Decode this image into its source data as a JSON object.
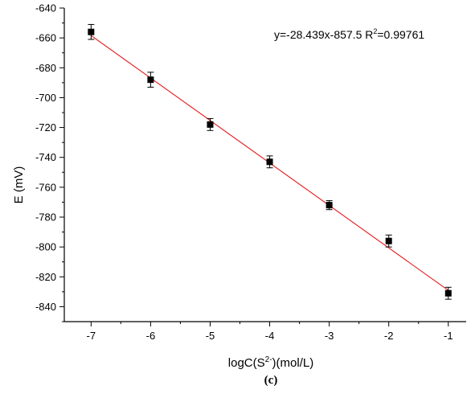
{
  "chart_data": {
    "type": "scatter",
    "title": "",
    "xlabel_prefix": "logC(S",
    "xlabel_sup": "2-",
    "xlabel_suffix": ")(mol/L)",
    "ylabel": "E (mV)",
    "panel_label": "(c)",
    "xlim": [
      -7.45,
      -0.7
    ],
    "ylim": [
      -850,
      -640
    ],
    "x_ticks": [
      -7,
      -6,
      -5,
      -4,
      -3,
      -2,
      -1
    ],
    "y_ticks": [
      -640,
      -660,
      -680,
      -700,
      -720,
      -740,
      -760,
      -780,
      -800,
      -820,
      -840
    ],
    "grid": false,
    "series": [
      {
        "x": [
          -7,
          -6,
          -5,
          -4,
          -3,
          -2,
          -1
        ],
        "y": [
          -656,
          -688,
          -718,
          -743,
          -772,
          -796,
          -831
        ],
        "yerr": [
          5,
          5,
          4,
          4,
          3,
          4,
          4
        ],
        "color": "#000000"
      }
    ],
    "fit": {
      "slope": -28.439,
      "intercept": -857.5,
      "x_range": [
        -7,
        -1
      ],
      "color": "#e31a1c",
      "equation_prefix": "y=-28.439x-857.5  R",
      "equation_sup": "2",
      "equation_suffix": "=0.99761"
    }
  }
}
